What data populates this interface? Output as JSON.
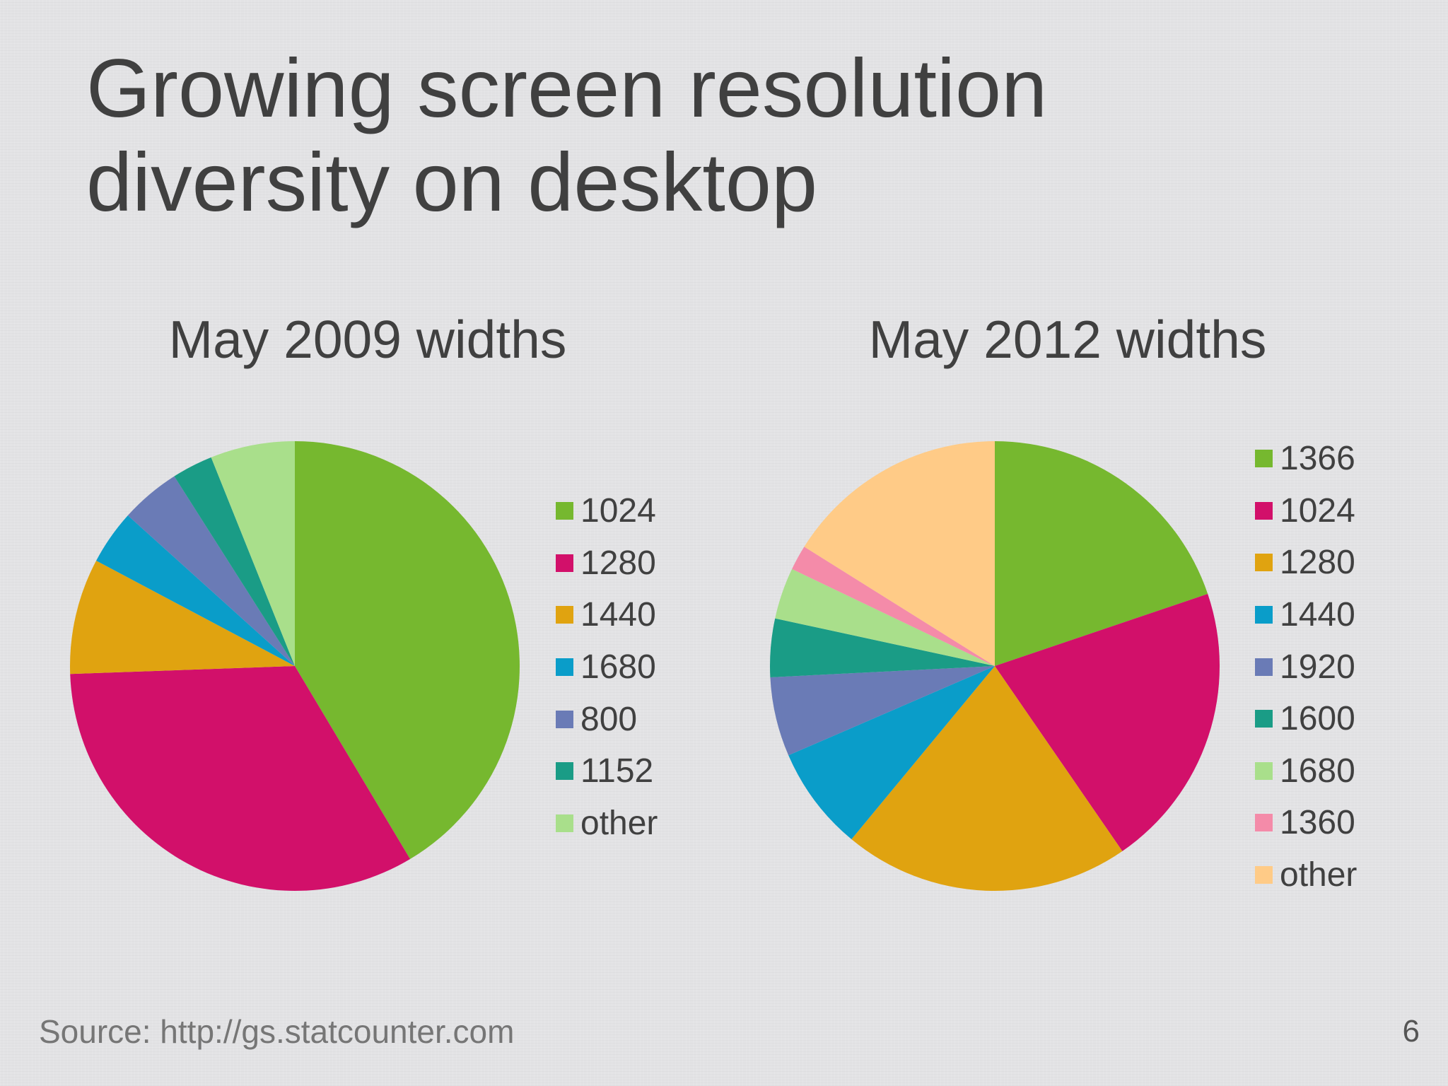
{
  "slide": {
    "title_line1": "Growing screen resolution",
    "title_line2": "diversity on desktop",
    "source": "Source: http://gs.statcounter.com",
    "page_number": "6"
  },
  "chart_data": [
    {
      "type": "pie",
      "title": "May 2009 widths",
      "categories": [
        "1024",
        "1280",
        "1440",
        "1680",
        "800",
        "1152",
        "other"
      ],
      "values": [
        42.3,
        33.7,
        8.5,
        4.0,
        4.4,
        3.0,
        6.2
      ],
      "colors": [
        "#76b82f",
        "#d2106a",
        "#e0a310",
        "#0a9dc9",
        "#6a7bb6",
        "#1a9c86",
        "#a9df8b"
      ],
      "legend_position": "right"
    },
    {
      "type": "pie",
      "title": "May 2012 widths",
      "categories": [
        "1366",
        "1024",
        "1280",
        "1440",
        "1920",
        "1600",
        "1680",
        "1360",
        "other"
      ],
      "values": [
        19.8,
        20.6,
        20.6,
        7.5,
        5.7,
        4.2,
        3.7,
        1.8,
        16.1
      ],
      "colors": [
        "#76b82f",
        "#d2106a",
        "#e0a310",
        "#0a9dc9",
        "#6a7bb6",
        "#1a9c86",
        "#a9df8b",
        "#f48ba9",
        "#ffcb87"
      ],
      "legend_position": "right"
    }
  ]
}
